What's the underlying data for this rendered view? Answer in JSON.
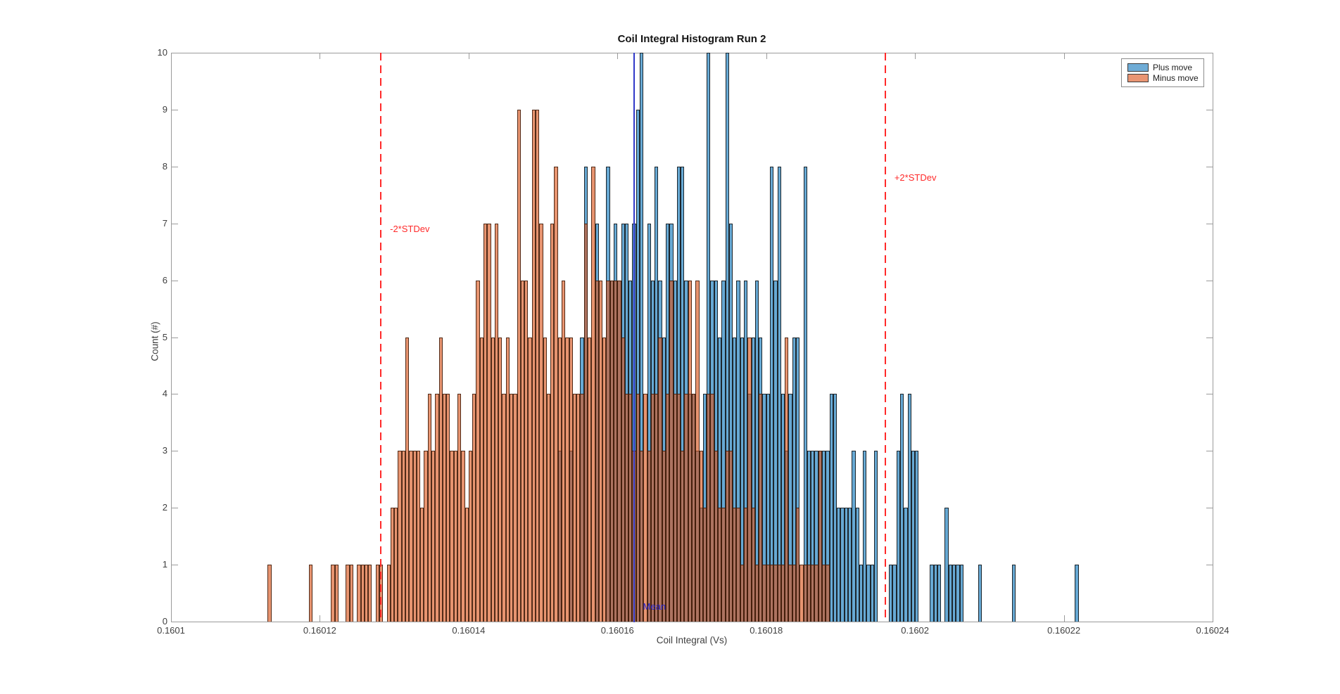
{
  "figure": {
    "title": "Coil Integral Histogram Run 2",
    "xlabel": "Coil Integral (Vs)",
    "ylabel": "Count (#)"
  },
  "axes": {
    "xlim": [
      0.1601,
      0.16024
    ],
    "ylim": [
      0,
      10
    ],
    "xtick_labels": [
      "0.1601",
      "0.16012",
      "0.16014",
      "0.16016",
      "0.16018",
      "0.1602",
      "0.16022",
      "0.16024"
    ],
    "xtick_values": [
      0.1601,
      0.16012,
      0.16014,
      0.16016,
      0.16018,
      0.1602,
      0.16022,
      0.16024
    ],
    "ytick_labels": [
      "0",
      "1",
      "2",
      "3",
      "4",
      "5",
      "6",
      "7",
      "8",
      "9",
      "10"
    ],
    "ytick_values": [
      0,
      1,
      2,
      3,
      4,
      5,
      6,
      7,
      8,
      9,
      10
    ],
    "grid": false,
    "box_color": "#9b9b9b",
    "text_color": "#3f3f3f"
  },
  "legend": {
    "position": "top-right",
    "entries": [
      {
        "label": "Plus move",
        "swatch_color": "#6facd6"
      },
      {
        "label": "Minus move",
        "swatch_color": "#e99573"
      }
    ]
  },
  "annotations": {
    "minus2sd": {
      "label": "-2*STDev",
      "x": 0.1601282,
      "color": "#ff2a2a",
      "line_style": "dashed"
    },
    "plus2sd": {
      "label": "+2*STDev",
      "x": 0.160196,
      "color": "#ff2a2a",
      "line_style": "dashed"
    },
    "mean": {
      "label": "Mean",
      "x": 0.1601622,
      "color": "#2222cc",
      "line_style": "solid",
      "line_color": "#3038c8"
    }
  },
  "chart_data": {
    "type": "bar",
    "subtype": "overlaid-histogram",
    "title": "Coil Integral Histogram Run 2",
    "xlabel": "Coil Integral (Vs)",
    "ylabel": "Count (#)",
    "xlim": [
      0.1601,
      0.16024
    ],
    "ylim": [
      0,
      10
    ],
    "bin_width": 5e-07,
    "legend_position": "top-right-inside",
    "series": [
      {
        "name": "Plus move",
        "face_color": "#67a9d4",
        "edge_color": "rgba(15,15,15,0.85)",
        "bins": [
          [
            0.160152,
            3
          ],
          [
            0.1601535,
            3
          ],
          [
            0.160155,
            5
          ],
          [
            0.1601555,
            8
          ],
          [
            0.160157,
            7
          ],
          [
            0.1601585,
            8
          ],
          [
            0.160159,
            6
          ],
          [
            0.1601595,
            7
          ],
          [
            0.16016,
            6
          ],
          [
            0.1601605,
            7
          ],
          [
            0.160161,
            7
          ],
          [
            0.1601615,
            6
          ],
          [
            0.160162,
            7
          ],
          [
            0.1601625,
            9
          ],
          [
            0.160163,
            10
          ],
          [
            0.160164,
            7
          ],
          [
            0.1601645,
            6
          ],
          [
            0.160165,
            8
          ],
          [
            0.1601655,
            6
          ],
          [
            0.160166,
            5
          ],
          [
            0.1601665,
            7
          ],
          [
            0.160167,
            7
          ],
          [
            0.1601675,
            6
          ],
          [
            0.160168,
            8
          ],
          [
            0.1601685,
            8
          ],
          [
            0.160169,
            6
          ],
          [
            0.1601695,
            4
          ],
          [
            0.16017,
            4
          ],
          [
            0.1601705,
            3
          ],
          [
            0.160171,
            2
          ],
          [
            0.1601715,
            4
          ],
          [
            0.160172,
            10
          ],
          [
            0.1601725,
            6
          ],
          [
            0.160173,
            6
          ],
          [
            0.1601735,
            5
          ],
          [
            0.160174,
            6
          ],
          [
            0.1601745,
            10
          ],
          [
            0.160175,
            7
          ],
          [
            0.1601755,
            5
          ],
          [
            0.160176,
            6
          ],
          [
            0.1601765,
            5
          ],
          [
            0.160177,
            6
          ],
          [
            0.1601775,
            4
          ],
          [
            0.160178,
            5
          ],
          [
            0.1601785,
            6
          ],
          [
            0.160179,
            5
          ],
          [
            0.1601795,
            4
          ],
          [
            0.16018,
            4
          ],
          [
            0.1601805,
            8
          ],
          [
            0.160181,
            6
          ],
          [
            0.1601815,
            8
          ],
          [
            0.160182,
            4
          ],
          [
            0.1601825,
            3
          ],
          [
            0.160183,
            4
          ],
          [
            0.1601835,
            5
          ],
          [
            0.160184,
            5
          ],
          [
            0.160185,
            8
          ],
          [
            0.1601855,
            3
          ],
          [
            0.160186,
            3
          ],
          [
            0.1601865,
            3
          ],
          [
            0.160187,
            3
          ],
          [
            0.1601875,
            3
          ],
          [
            0.160188,
            3
          ],
          [
            0.1601885,
            4
          ],
          [
            0.160189,
            4
          ],
          [
            0.1601895,
            2
          ],
          [
            0.16019,
            2
          ],
          [
            0.1601905,
            2
          ],
          [
            0.160191,
            2
          ],
          [
            0.1601915,
            3
          ],
          [
            0.160192,
            2
          ],
          [
            0.1601925,
            1
          ],
          [
            0.160193,
            3
          ],
          [
            0.1601935,
            1
          ],
          [
            0.160194,
            1
          ],
          [
            0.1601945,
            3
          ],
          [
            0.1601965,
            1
          ],
          [
            0.160197,
            1
          ],
          [
            0.1601975,
            3
          ],
          [
            0.160198,
            4
          ],
          [
            0.1601985,
            2
          ],
          [
            0.160199,
            4
          ],
          [
            0.1601995,
            3
          ],
          [
            0.1602,
            3
          ],
          [
            0.160202,
            1
          ],
          [
            0.1602025,
            1
          ],
          [
            0.160203,
            1
          ],
          [
            0.160204,
            2
          ],
          [
            0.1602045,
            1
          ],
          [
            0.160205,
            1
          ],
          [
            0.1602055,
            1
          ],
          [
            0.160206,
            1
          ],
          [
            0.1602085,
            1
          ],
          [
            0.160213,
            1
          ],
          [
            0.1602215,
            1
          ]
        ]
      },
      {
        "name": "Minus move",
        "face_color": "rgba(217,83,25,0.62)",
        "edge_color": "rgba(55,25,8,0.85)",
        "bins": [
          [
            0.160113,
            1
          ],
          [
            0.1601185,
            1
          ],
          [
            0.1601215,
            1
          ],
          [
            0.160122,
            1
          ],
          [
            0.1601235,
            1
          ],
          [
            0.160124,
            1
          ],
          [
            0.160125,
            1
          ],
          [
            0.1601255,
            1
          ],
          [
            0.160126,
            1
          ],
          [
            0.1601265,
            1
          ],
          [
            0.1601275,
            1
          ],
          [
            0.160128,
            1
          ],
          [
            0.160129,
            1
          ],
          [
            0.1601295,
            2
          ],
          [
            0.16013,
            2
          ],
          [
            0.1601305,
            3
          ],
          [
            0.160131,
            3
          ],
          [
            0.1601315,
            5
          ],
          [
            0.160132,
            3
          ],
          [
            0.1601325,
            3
          ],
          [
            0.160133,
            3
          ],
          [
            0.1601335,
            2
          ],
          [
            0.160134,
            3
          ],
          [
            0.1601345,
            4
          ],
          [
            0.160135,
            3
          ],
          [
            0.1601355,
            4
          ],
          [
            0.160136,
            5
          ],
          [
            0.1601365,
            4
          ],
          [
            0.160137,
            4
          ],
          [
            0.1601375,
            3
          ],
          [
            0.160138,
            3
          ],
          [
            0.1601385,
            4
          ],
          [
            0.160139,
            3
          ],
          [
            0.1601395,
            2
          ],
          [
            0.16014,
            3
          ],
          [
            0.1601405,
            4
          ],
          [
            0.160141,
            6
          ],
          [
            0.1601415,
            5
          ],
          [
            0.160142,
            7
          ],
          [
            0.1601425,
            7
          ],
          [
            0.160143,
            5
          ],
          [
            0.1601435,
            7
          ],
          [
            0.160144,
            5
          ],
          [
            0.1601445,
            4
          ],
          [
            0.160145,
            5
          ],
          [
            0.1601455,
            4
          ],
          [
            0.160146,
            4
          ],
          [
            0.1601465,
            9
          ],
          [
            0.160147,
            6
          ],
          [
            0.1601475,
            6
          ],
          [
            0.160148,
            5
          ],
          [
            0.1601485,
            9
          ],
          [
            0.160149,
            9
          ],
          [
            0.1601495,
            7
          ],
          [
            0.16015,
            5
          ],
          [
            0.1601505,
            4
          ],
          [
            0.160151,
            7
          ],
          [
            0.1601515,
            8
          ],
          [
            0.160152,
            5
          ],
          [
            0.1601525,
            6
          ],
          [
            0.160153,
            5
          ],
          [
            0.1601535,
            5
          ],
          [
            0.160154,
            4
          ],
          [
            0.1601545,
            4
          ],
          [
            0.160155,
            4
          ],
          [
            0.1601555,
            7
          ],
          [
            0.160156,
            5
          ],
          [
            0.1601565,
            8
          ],
          [
            0.160157,
            6
          ],
          [
            0.1601575,
            6
          ],
          [
            0.160158,
            5
          ],
          [
            0.1601585,
            6
          ],
          [
            0.160159,
            6
          ],
          [
            0.1601595,
            6
          ],
          [
            0.16016,
            6
          ],
          [
            0.1601605,
            5
          ],
          [
            0.160161,
            4
          ],
          [
            0.1601615,
            4
          ],
          [
            0.160162,
            3
          ],
          [
            0.1601625,
            4
          ],
          [
            0.160163,
            3
          ],
          [
            0.1601635,
            4
          ],
          [
            0.160164,
            3
          ],
          [
            0.1601645,
            4
          ],
          [
            0.160165,
            4
          ],
          [
            0.1601655,
            5
          ],
          [
            0.160166,
            3
          ],
          [
            0.1601665,
            4
          ],
          [
            0.160167,
            6
          ],
          [
            0.1601675,
            4
          ],
          [
            0.160168,
            4
          ],
          [
            0.1601685,
            3
          ],
          [
            0.160169,
            4
          ],
          [
            0.1601695,
            6
          ],
          [
            0.16017,
            4
          ],
          [
            0.1601705,
            6
          ],
          [
            0.160171,
            3
          ],
          [
            0.1601715,
            2
          ],
          [
            0.160172,
            4
          ],
          [
            0.1601725,
            4
          ],
          [
            0.160173,
            3
          ],
          [
            0.1601735,
            2
          ],
          [
            0.160174,
            2
          ],
          [
            0.1601745,
            3
          ],
          [
            0.160175,
            3
          ],
          [
            0.1601755,
            2
          ],
          [
            0.160176,
            2
          ],
          [
            0.1601765,
            1
          ],
          [
            0.160177,
            2
          ],
          [
            0.1601775,
            5
          ],
          [
            0.160178,
            2
          ],
          [
            0.1601785,
            1
          ],
          [
            0.160179,
            4
          ],
          [
            0.1601795,
            1
          ],
          [
            0.16018,
            1
          ],
          [
            0.1601805,
            1
          ],
          [
            0.160181,
            1
          ],
          [
            0.1601815,
            1
          ],
          [
            0.160182,
            1
          ],
          [
            0.1601825,
            5
          ],
          [
            0.160183,
            1
          ],
          [
            0.1601835,
            1
          ],
          [
            0.160184,
            2
          ],
          [
            0.1601845,
            1
          ],
          [
            0.160185,
            1
          ],
          [
            0.1601855,
            1
          ],
          [
            0.160186,
            1
          ],
          [
            0.1601865,
            1
          ],
          [
            0.160187,
            3
          ],
          [
            0.1601875,
            1
          ],
          [
            0.160188,
            1
          ]
        ]
      }
    ],
    "reference_lines": [
      {
        "label": "-2*STDev",
        "x": 0.1601282,
        "style": "dashed",
        "color": "red"
      },
      {
        "label": "Mean",
        "x": 0.1601622,
        "style": "solid",
        "color": "blue"
      },
      {
        "label": "+2*STDev",
        "x": 0.160196,
        "style": "dashed",
        "color": "red"
      }
    ]
  }
}
